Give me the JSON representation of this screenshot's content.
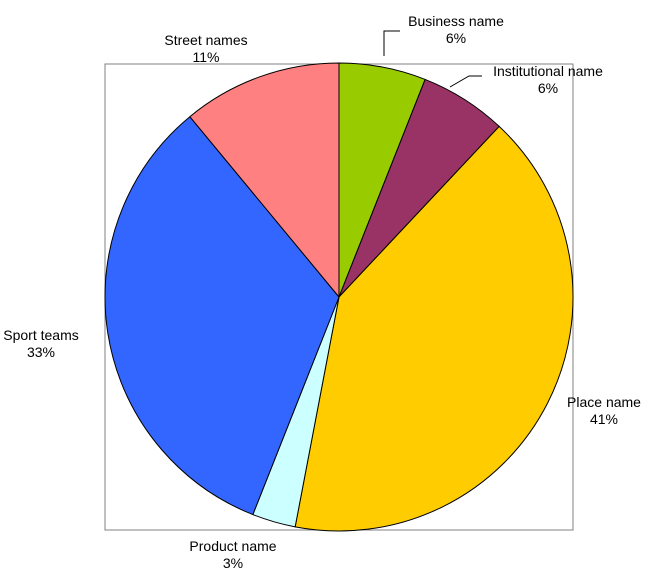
{
  "chart_data": {
    "type": "pie",
    "start_angle_deg": 0,
    "direction": "clockwise",
    "slices": [
      {
        "label": "Business name",
        "value": 6,
        "value_label": "6%",
        "color": "#99CC00"
      },
      {
        "label": "Institutional name",
        "value": 6,
        "value_label": "6%",
        "color": "#993366"
      },
      {
        "label": "Place name",
        "value": 41,
        "value_label": "41%",
        "color": "#FFCC00"
      },
      {
        "label": "Product name",
        "value": 3,
        "value_label": "3%",
        "color": "#CCFFFF"
      },
      {
        "label": "Sport teams",
        "value": 33,
        "value_label": "33%",
        "color": "#3366FF"
      },
      {
        "label": "Street names",
        "value": 11,
        "value_label": "11%",
        "color": "#FF8080"
      }
    ]
  }
}
